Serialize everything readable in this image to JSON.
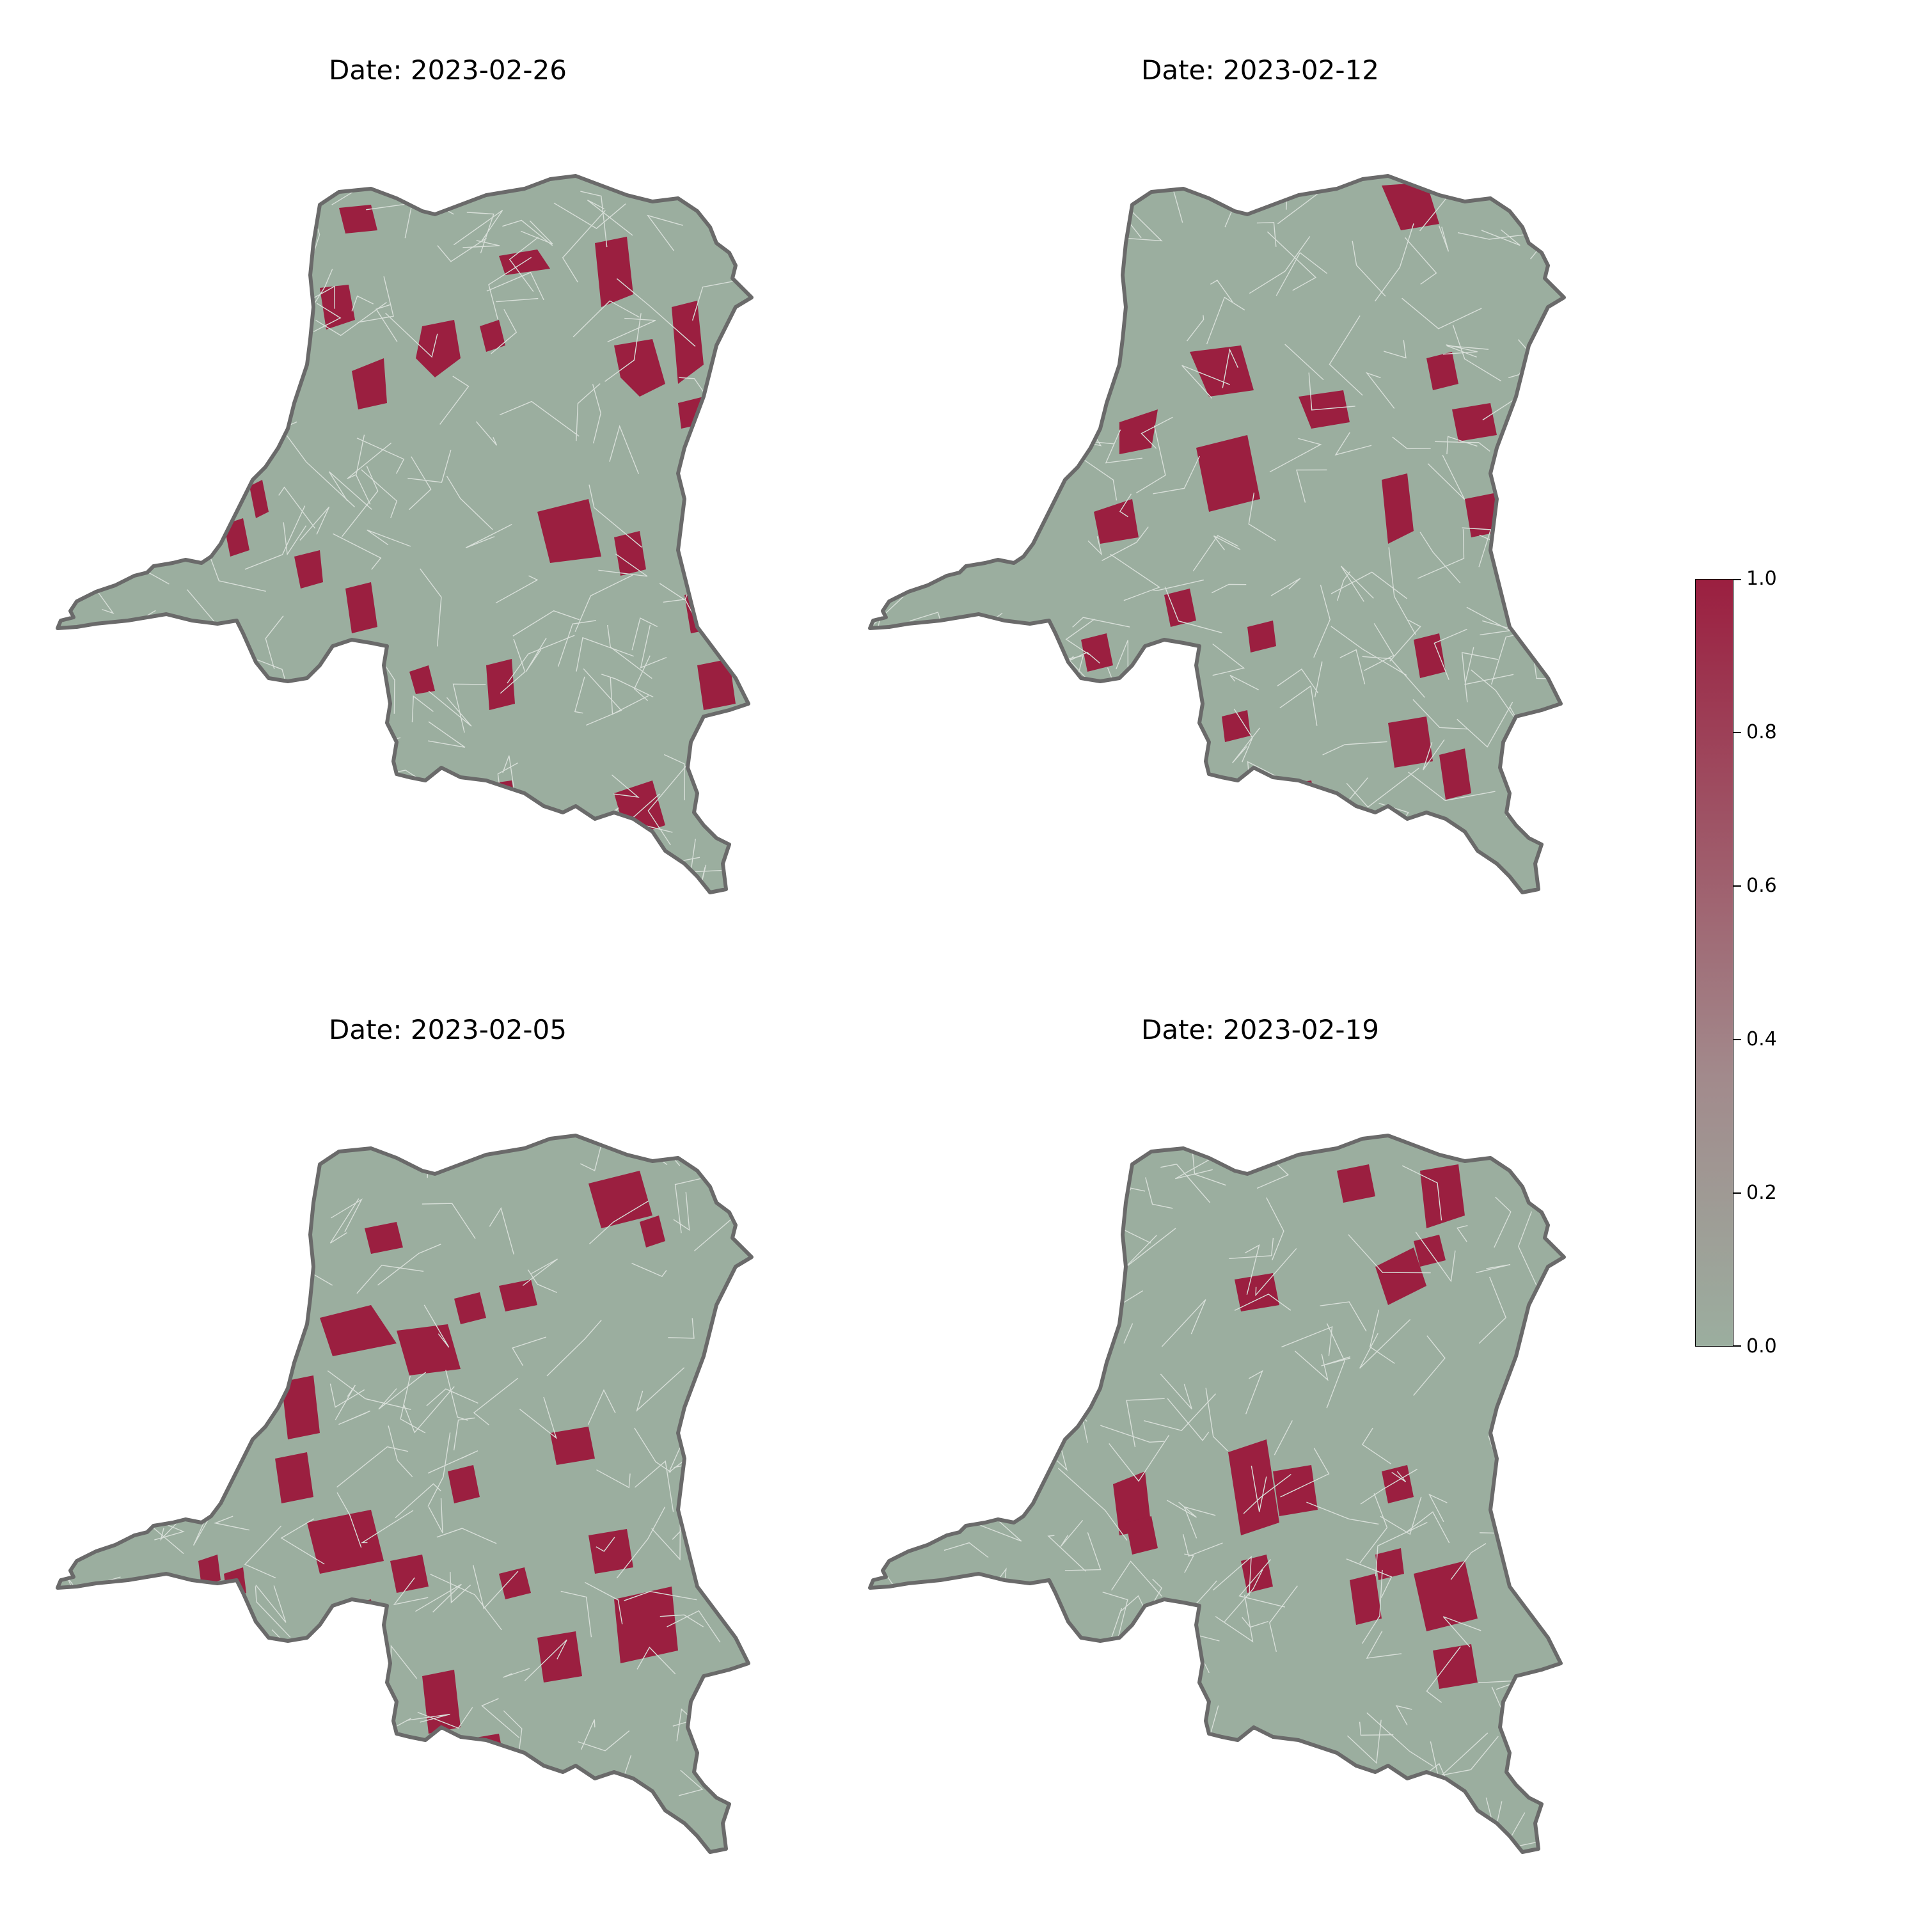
{
  "colors": {
    "background_region": "#9bae9f",
    "highlight_region": "#9b1f40",
    "outline": "#6a6a6a",
    "boundaries": "#d8dfd9"
  },
  "panels": [
    {
      "title": "Date: 2023-02-26",
      "shade_variant": 0
    },
    {
      "title": "Date: 2023-02-12",
      "shade_variant": 1
    },
    {
      "title": "Date: 2023-02-05",
      "shade_variant": 2
    },
    {
      "title": "Date: 2023-02-19",
      "shade_variant": 3
    }
  ],
  "colorbar": {
    "min": 0.0,
    "max": 1.0,
    "ticks": [
      "0.0",
      "0.2",
      "0.4",
      "0.6",
      "0.8",
      "1.0"
    ],
    "color_low": "#9bae9f",
    "color_mid": "#a28a8c",
    "color_high": "#9b1f40"
  }
}
